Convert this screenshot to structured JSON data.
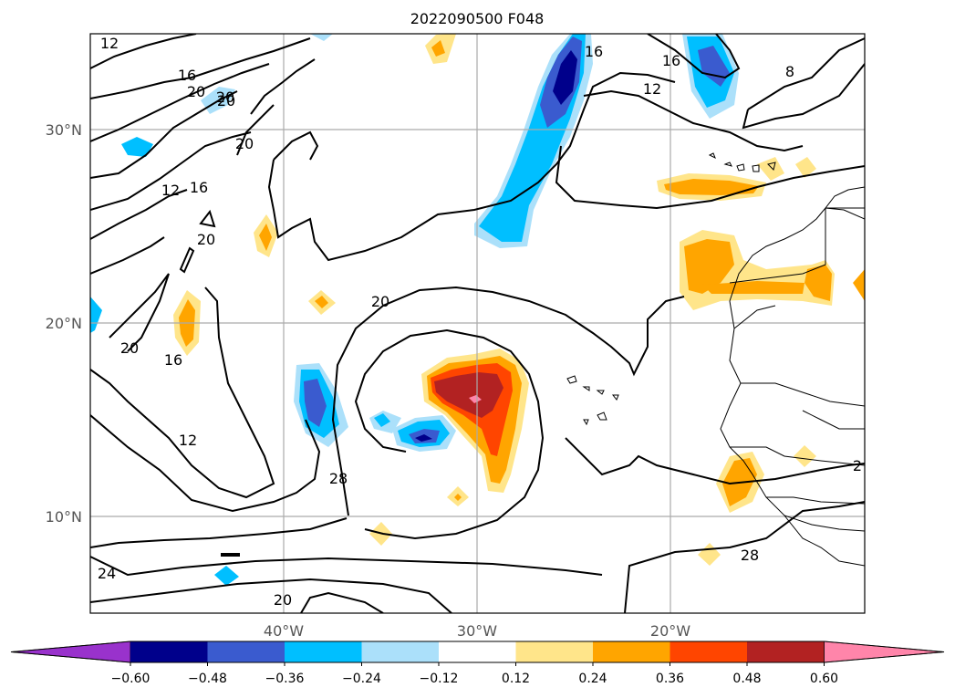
{
  "title": "2022090500 F048",
  "lat_labels": [
    "30°N",
    "20°N",
    "10°N"
  ],
  "lon_labels": [
    "40°W",
    "30°W",
    "20°W"
  ],
  "contour_labels": [
    "12",
    "16",
    "20",
    "20",
    "20",
    "20",
    "12",
    "16",
    "20",
    "20",
    "16",
    "20",
    "12",
    "28",
    "24",
    "20",
    "16",
    "12",
    "8",
    "28",
    "2"
  ],
  "colorbar": {
    "ticks": [
      "−0.60",
      "−0.48",
      "−0.36",
      "−0.24",
      "−0.12",
      "0.12",
      "0.24",
      "0.36",
      "0.48",
      "0.60"
    ],
    "colors": [
      "#9932cc",
      "#00008b",
      "#3a5bcf",
      "#00bfff",
      "#abe0fa",
      "#ffffff",
      "#ffe58a",
      "#ffa500",
      "#ff4500",
      "#b22222",
      "#ff85aa"
    ]
  }
}
